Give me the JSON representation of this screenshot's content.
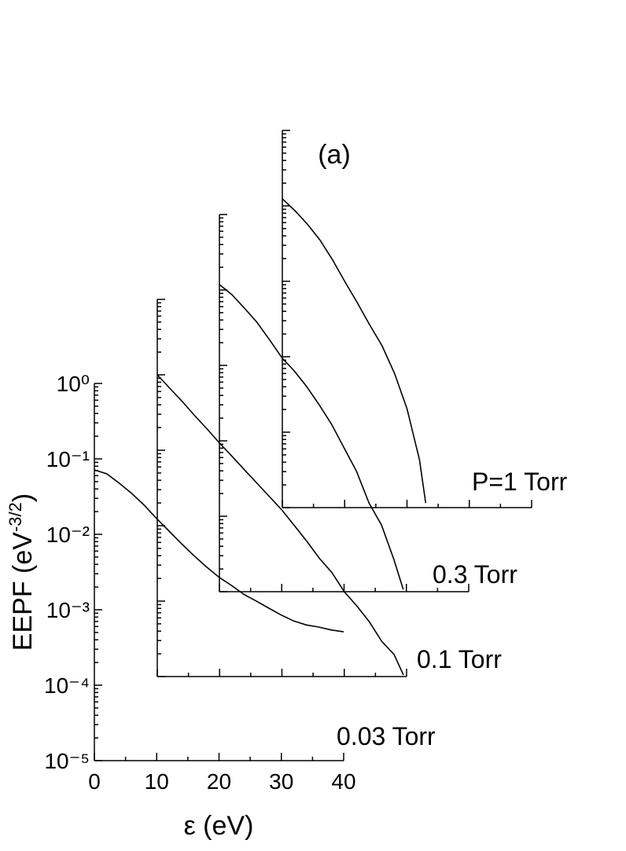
{
  "chart_data": {
    "type": "line",
    "annotation": "(a)",
    "xlabel": "ε (eV)",
    "ylabel": [
      "EEPF (eV",
      "-3/2",
      ")"
    ],
    "xlim": [
      0,
      40
    ],
    "xticks": [
      0,
      10,
      20,
      30,
      40
    ],
    "ylim": [
      1e-05,
      1
    ],
    "log_y": true,
    "yticks": [
      {
        "value": 1e-05,
        "label": "10⁻⁵"
      },
      {
        "value": 0.0001,
        "label": "10⁻⁴"
      },
      {
        "value": 0.001,
        "label": "10⁻³"
      },
      {
        "value": 0.01,
        "label": "10⁻²"
      },
      {
        "value": 0.1,
        "label": "10⁻¹"
      },
      {
        "value": 1,
        "label": "10⁰"
      }
    ],
    "series": [
      {
        "name": "0.03 Torr",
        "color": "#000000",
        "x": [
          0,
          2,
          4,
          6,
          8,
          10,
          12,
          14,
          16,
          18,
          20,
          22,
          24,
          26,
          28,
          30,
          32,
          34,
          36,
          38,
          40
        ],
        "values": [
          0.0714,
          0.0634,
          0.0475,
          0.0348,
          0.0243,
          0.0161,
          0.011,
          0.0075,
          0.0052,
          0.0037,
          0.0027,
          0.0021,
          0.0016,
          0.0013,
          0.00105,
          0.00085,
          0.00071,
          0.00063,
          0.00059,
          0.00054,
          0.00051
        ]
      },
      {
        "name": "0.1 Torr",
        "color": "#000000",
        "x": [
          0,
          2,
          4,
          6,
          8,
          10,
          12,
          14,
          16,
          18,
          20,
          22,
          24,
          26,
          28,
          30,
          32,
          34,
          36,
          38,
          39.5
        ],
        "values": [
          0.1,
          0.0665,
          0.0443,
          0.0287,
          0.0191,
          0.0124,
          0.0083,
          0.0055,
          0.00365,
          0.00243,
          0.00161,
          0.001,
          0.00062,
          0.00037,
          0.00024,
          0.000133,
          8.66e-05,
          5.36e-05,
          2.94e-05,
          1.96e-05,
          1.05e-05
        ]
      },
      {
        "name": "0.3 Torr",
        "color": "#000000",
        "x": [
          0,
          2,
          4,
          6,
          8,
          10,
          12,
          14,
          16,
          18,
          20,
          22,
          24,
          26,
          28,
          29.5
        ],
        "values": [
          0.118,
          0.0866,
          0.0575,
          0.0374,
          0.0221,
          0.0127,
          0.00845,
          0.00524,
          0.00301,
          0.00166,
          0.000805,
          0.000393,
          0.00015,
          7.67e-05,
          2.67e-05,
          1.07e-05
        ]
      },
      {
        "name": "P=1 Torr",
        "color": "#000000",
        "x": [
          0,
          2,
          4,
          6,
          8,
          10,
          12,
          14,
          16,
          18,
          20,
          22,
          23
        ],
        "values": [
          0.124,
          0.0866,
          0.0575,
          0.0356,
          0.0196,
          0.01,
          0.00524,
          0.00267,
          0.0014,
          0.000604,
          0.000205,
          4.31e-05,
          1.15e-05
        ]
      }
    ]
  }
}
